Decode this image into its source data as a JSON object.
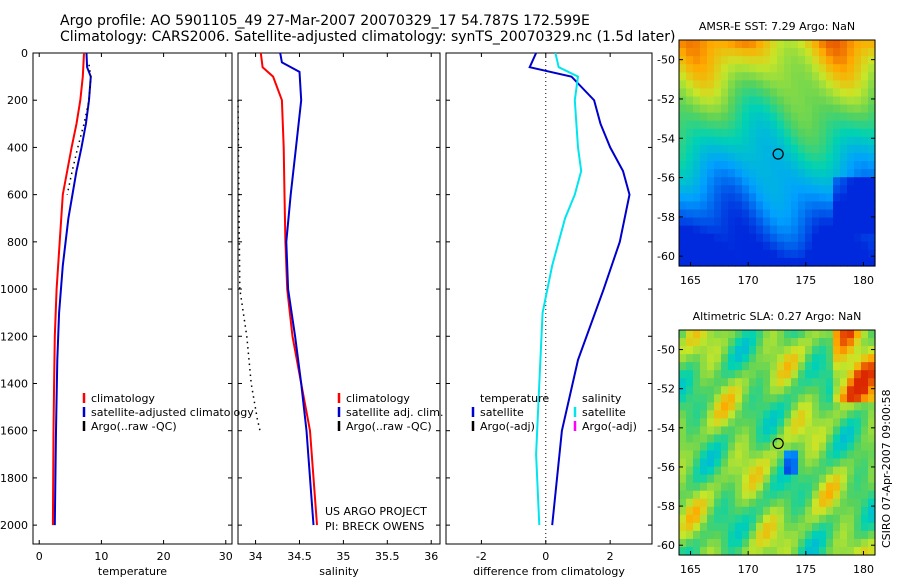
{
  "header": {
    "line1": "Argo profile: AO 5901105_49 27-Mar-2007 20070329_17 54.787S 172.599E",
    "line2": "Climatology: CARS2006. Satellite-adjusted climatology: synTS_20070329.nc (1.5d later)"
  },
  "side_credit": "CSIRO 07-Apr-2007 09:00:58",
  "project_note": [
    "US ARGO PROJECT",
    "PI: BRECK OWENS"
  ],
  "colors": {
    "climatology": "#ff0000",
    "satellite": "#0000cc",
    "argo": "#000000",
    "sat_salinity": "#00e5ee",
    "argo_salinity": "#ff00ff"
  },
  "chart_data": [
    {
      "type": "line",
      "xlabel": "temperature",
      "ylabel": "",
      "xlim": [
        -1,
        31
      ],
      "ylim": [
        2080,
        0
      ],
      "xticks": [
        0,
        10,
        20,
        30
      ],
      "yticks": [
        0,
        200,
        400,
        600,
        800,
        1000,
        1200,
        1400,
        1600,
        1800,
        2000
      ],
      "legend": {
        "placement": "bottom-right",
        "entries": [
          "climatology",
          "satellite-adjusted climatology",
          "Argo(..raw -QC)"
        ]
      },
      "series": [
        {
          "name": "climatology",
          "color": "#ff0000",
          "style": "solid",
          "x": [
            7.2,
            7.0,
            6.6,
            6.0,
            5.2,
            4.5,
            3.8,
            3.3,
            2.8,
            2.5,
            2.4,
            2.3,
            2.2
          ],
          "y": [
            0,
            100,
            200,
            300,
            400,
            500,
            600,
            800,
            1000,
            1200,
            1400,
            1600,
            2000
          ]
        },
        {
          "name": "satellite-adjusted climatology",
          "color": "#0000cc",
          "style": "solid",
          "x": [
            7.6,
            7.7,
            8.3,
            8.0,
            7.5,
            6.8,
            6.0,
            4.7,
            3.8,
            3.2,
            2.9,
            2.7,
            2.5
          ],
          "y": [
            0,
            60,
            100,
            200,
            300,
            400,
            500,
            700,
            900,
            1100,
            1300,
            1600,
            2000
          ]
        },
        {
          "name": "Argo(..raw -QC)",
          "color": "#000000",
          "style": "dotted",
          "x": [
            8.0,
            8.3,
            8.0,
            7.2,
            6.2,
            5.3,
            4.5
          ],
          "y": [
            50,
            100,
            200,
            300,
            400,
            500,
            600
          ]
        }
      ]
    },
    {
      "type": "line",
      "xlabel": "salinity",
      "xlim": [
        33.8,
        36.1
      ],
      "ylim": [
        2080,
        0
      ],
      "xticks": [
        34,
        34.5,
        35,
        35.5,
        36
      ],
      "legend": {
        "placement": "bottom-right",
        "entries": [
          "climatology",
          "satellite adj. clim.",
          "Argo(..raw -QC)"
        ]
      },
      "series": [
        {
          "name": "climatology",
          "color": "#ff0000",
          "style": "solid",
          "x": [
            34.06,
            34.08,
            34.2,
            34.3,
            34.32,
            34.33,
            34.34,
            34.36,
            34.42,
            34.52,
            34.62,
            34.66,
            34.7
          ],
          "y": [
            0,
            60,
            100,
            200,
            400,
            600,
            800,
            1000,
            1200,
            1400,
            1600,
            1800,
            2000
          ]
        },
        {
          "name": "satellite adj. clim.",
          "color": "#0000cc",
          "style": "solid",
          "x": [
            34.28,
            34.3,
            34.5,
            34.52,
            34.46,
            34.4,
            34.35,
            34.37,
            34.45,
            34.52,
            34.58,
            34.62,
            34.66
          ],
          "y": [
            0,
            40,
            80,
            200,
            400,
            600,
            800,
            1000,
            1200,
            1400,
            1600,
            1800,
            2000
          ]
        },
        {
          "name": "Argo(..raw -QC)",
          "color": "#000000",
          "style": "dotted",
          "x": [
            33.8,
            33.82,
            33.9,
            33.95,
            34.02,
            34.05
          ],
          "y": [
            200,
            1000,
            1200,
            1400,
            1550,
            1600
          ]
        }
      ]
    },
    {
      "type": "line",
      "xlabel": "difference from climatology",
      "xlim": [
        -3.1,
        3.3
      ],
      "ylim": [
        2080,
        0
      ],
      "xticks": [
        -2,
        0,
        2
      ],
      "zero_line": 0,
      "legend": {
        "placement": "bottom",
        "headers": [
          "temperature",
          "salinity"
        ],
        "entries_temperature": [
          "satellite",
          "Argo(-adj)"
        ],
        "entries_salinity": [
          "satellite",
          "Argo(-adj)"
        ]
      },
      "series": [
        {
          "name": "temperature satellite",
          "color": "#0000cc",
          "style": "solid",
          "x": [
            -0.3,
            -0.5,
            0.8,
            1.5,
            1.7,
            2.0,
            2.4,
            2.6,
            2.3,
            1.8,
            1.0,
            0.5,
            0.2
          ],
          "y": [
            0,
            60,
            100,
            200,
            300,
            400,
            500,
            600,
            800,
            1000,
            1300,
            1600,
            2000
          ]
        },
        {
          "name": "salinity satellite",
          "color": "#00e5ee",
          "style": "solid",
          "x": [
            0.3,
            0.4,
            1.0,
            0.9,
            1.0,
            1.1,
            0.9,
            0.6,
            0.2,
            -0.1,
            -0.2,
            -0.3,
            -0.2
          ],
          "y": [
            0,
            60,
            100,
            200,
            400,
            500,
            600,
            700,
            900,
            1100,
            1400,
            1700,
            2000
          ]
        }
      ]
    },
    {
      "type": "heatmap",
      "title": "AMSR-E SST: 7.29 Argo: NaN",
      "xlim": [
        164,
        181
      ],
      "ylim": [
        -60.5,
        -49
      ],
      "xticks": [
        165,
        170,
        175,
        180
      ],
      "yticks": [
        -50,
        -52,
        -54,
        -56,
        -58,
        -60
      ],
      "marker": {
        "lon": 172.6,
        "lat": -54.8
      }
    },
    {
      "type": "heatmap",
      "title": "Altimetric SLA: 0.27 Argo: NaN",
      "xlim": [
        164,
        181
      ],
      "ylim": [
        -60.5,
        -49
      ],
      "xticks": [
        165,
        170,
        175,
        180
      ],
      "yticks": [
        -50,
        -52,
        -54,
        -56,
        -58,
        -60
      ],
      "marker": {
        "lon": 172.6,
        "lat": -54.8
      }
    }
  ]
}
